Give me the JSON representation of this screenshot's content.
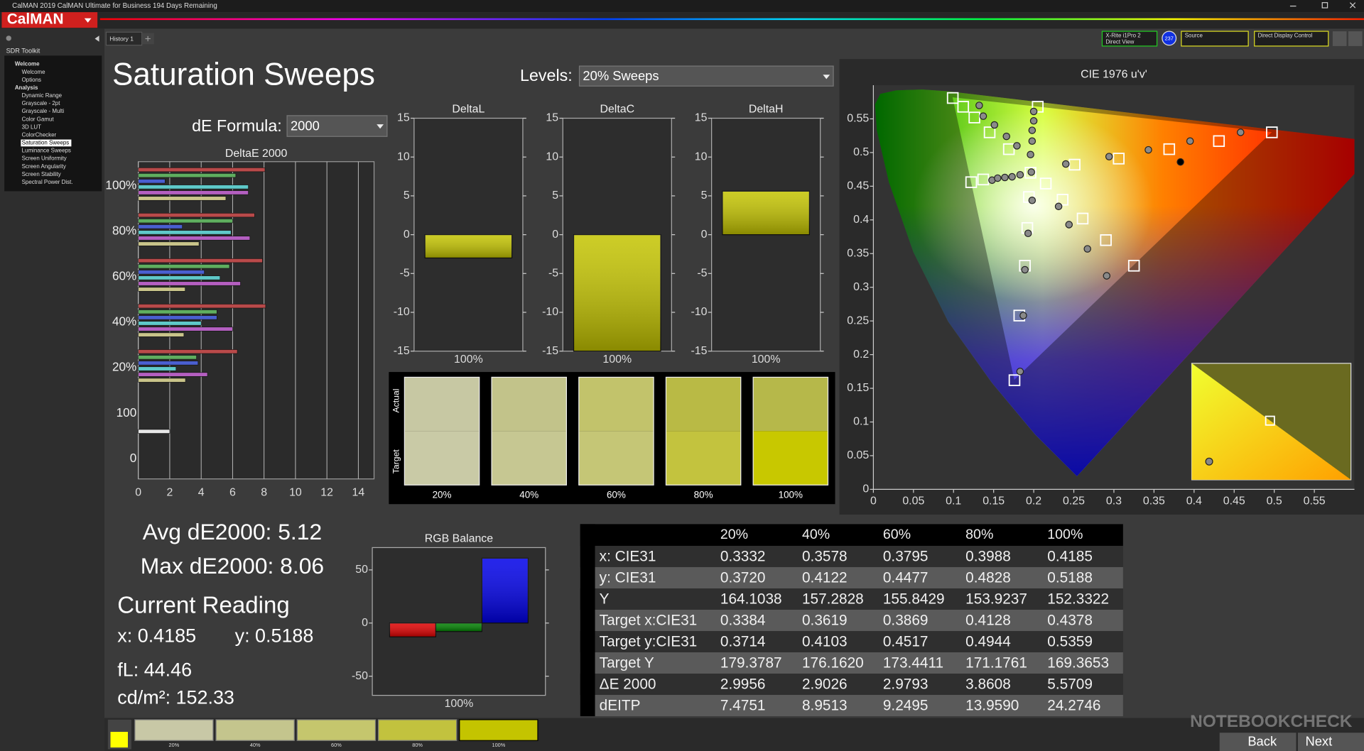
{
  "window": {
    "title": "CalMAN 2019 CalMAN Ultimate for Business 194 Days Remaining",
    "logo": "CalMAN"
  },
  "tabs": [
    "History 1"
  ],
  "toolbar": {
    "meter": [
      "X-Rite i1Pro 2",
      "Direct View"
    ],
    "badge": "237",
    "source": "Source",
    "display": "Direct Display Control"
  },
  "sidebar": {
    "title": "SDR Toolkit",
    "items": [
      {
        "label": "Welcome",
        "heading": true
      },
      {
        "label": "Welcome"
      },
      {
        "label": "Options"
      },
      {
        "label": "Analysis",
        "heading": true
      },
      {
        "label": "Dynamic Range"
      },
      {
        "label": "Grayscale - 2pt"
      },
      {
        "label": "Grayscale - Multi"
      },
      {
        "label": "Color Gamut"
      },
      {
        "label": "3D LUT"
      },
      {
        "label": "ColorChecker"
      },
      {
        "label": "Saturation Sweeps",
        "selected": true
      },
      {
        "label": "Luminance Sweeps"
      },
      {
        "label": "Screen Uniformity"
      },
      {
        "label": "Screen Angularity"
      },
      {
        "label": "Screen Stability"
      },
      {
        "label": "Spectral Power Dist."
      }
    ]
  },
  "page": {
    "title": "Saturation Sweeps",
    "levels_label": "Levels:",
    "levels_value": "20% Sweeps",
    "formula_label": "dE Formula:",
    "formula_value": "2000"
  },
  "chart_data": [
    {
      "type": "hbar",
      "title": "DeltaE 2000",
      "categories": [
        "100%",
        "80%",
        "60%",
        "40%",
        "20%",
        "100",
        "0"
      ],
      "series": [
        {
          "color": "#b94a4a",
          "values": [
            8.06,
            7.4,
            7.9,
            8.1,
            6.3,
            null,
            null
          ]
        },
        {
          "color": "#5fae5f",
          "values": [
            6.2,
            6.0,
            5.8,
            5.0,
            3.7,
            null,
            null
          ]
        },
        {
          "color": "#4a5fd0",
          "values": [
            1.7,
            2.8,
            4.2,
            5.0,
            3.8,
            null,
            null
          ]
        },
        {
          "color": "#5fc9c9",
          "values": [
            7.0,
            5.9,
            5.2,
            4.0,
            2.4,
            null,
            null
          ]
        },
        {
          "color": "#b45fc0",
          "values": [
            7.0,
            7.1,
            6.5,
            6.0,
            4.4,
            null,
            null
          ]
        },
        {
          "color": "#c9c48a",
          "values": [
            5.57,
            3.86,
            2.98,
            2.9,
            3.0,
            null,
            null
          ]
        },
        {
          "color": "#e8e8e8",
          "values": [
            null,
            null,
            null,
            null,
            null,
            2.0,
            null
          ]
        }
      ],
      "xlim": [
        0,
        15
      ],
      "xticks": [
        0,
        2,
        4,
        6,
        8,
        10,
        12,
        14
      ],
      "grid": true
    },
    {
      "type": "bar",
      "title": "DeltaL",
      "categories": [
        "100%"
      ],
      "values": [
        -3.0
      ],
      "color": "#c4c400",
      "ylim": [
        -15,
        15
      ],
      "yticks": [
        -15,
        -10,
        -5,
        0,
        5,
        10,
        15
      ]
    },
    {
      "type": "bar",
      "title": "DeltaC",
      "categories": [
        "100%"
      ],
      "values": [
        -15
      ],
      "color": "#c4c400",
      "ylim": [
        -15,
        15
      ],
      "yticks": [
        -15,
        -10,
        -5,
        0,
        5,
        10,
        15
      ]
    },
    {
      "type": "bar",
      "title": "DeltaH",
      "categories": [
        "100%"
      ],
      "values": [
        5.6
      ],
      "color": "#c4c400",
      "ylim": [
        -15,
        15
      ],
      "yticks": [
        -15,
        -10,
        -5,
        0,
        5,
        10,
        15
      ]
    },
    {
      "type": "bar",
      "title": "RGB Balance",
      "categories": [
        "100%"
      ],
      "series": [
        {
          "color": "#e00000",
          "values": [
            -13
          ]
        },
        {
          "color": "#008000",
          "values": [
            -8
          ]
        },
        {
          "color": "#0000e8",
          "values": [
            61
          ]
        }
      ],
      "ylim": [
        -68,
        71
      ],
      "yticks": [
        -50,
        0,
        50
      ]
    },
    {
      "type": "scatter",
      "title": "CIE 1976 u'v'",
      "xlim": [
        0,
        0.6
      ],
      "ylim": [
        0,
        0.6
      ],
      "xticks": [
        0,
        0.05,
        0.1,
        0.15,
        0.2,
        0.25,
        0.3,
        0.35,
        0.4,
        0.45,
        0.5,
        0.55
      ],
      "yticks": [
        0,
        0.05,
        0.1,
        0.15,
        0.2,
        0.25,
        0.3,
        0.35,
        0.4,
        0.45,
        0.5,
        0.55
      ],
      "series": [
        {
          "marker": "square",
          "color": "#ffffff",
          "x": [
            0.099,
            0.112,
            0.126,
            0.145,
            0.169,
            0.205,
            0.122,
            0.137,
            0.196,
            0.215,
            0.251,
            0.306,
            0.369,
            0.431,
            0.497,
            0.194,
            0.236,
            0.261,
            0.29,
            0.325,
            0.192,
            0.189,
            0.182,
            0.176
          ],
          "y": [
            0.581,
            0.568,
            0.552,
            0.53,
            0.505,
            0.568,
            0.456,
            0.46,
            0.47,
            0.454,
            0.482,
            0.491,
            0.505,
            0.517,
            0.53,
            0.434,
            0.43,
            0.402,
            0.37,
            0.332,
            0.388,
            0.332,
            0.258,
            0.162
          ]
        },
        {
          "marker": "circle",
          "color": "#8a8a8a",
          "x": [
            0.132,
            0.137,
            0.151,
            0.166,
            0.179,
            0.2,
            0.2,
            0.198,
            0.198,
            0.196,
            0.197,
            0.148,
            0.155,
            0.164,
            0.173,
            0.183,
            0.24,
            0.294,
            0.343,
            0.395,
            0.458,
            0.198,
            0.231,
            0.244,
            0.267,
            0.291,
            0.193,
            0.189,
            0.187,
            0.183
          ],
          "y": [
            0.57,
            0.554,
            0.541,
            0.524,
            0.51,
            0.561,
            0.547,
            0.533,
            0.517,
            0.497,
            0.471,
            0.459,
            0.462,
            0.463,
            0.464,
            0.467,
            0.483,
            0.494,
            0.504,
            0.517,
            0.53,
            0.429,
            0.42,
            0.393,
            0.357,
            0.317,
            0.38,
            0.326,
            0.258,
            0.175
          ]
        },
        {
          "marker": "circle",
          "color": "#000000",
          "x": [
            0.383
          ],
          "y": [
            0.486
          ]
        }
      ]
    }
  ],
  "swatches": {
    "actual_label": "Actual",
    "target_label": "Target",
    "items": [
      {
        "label": "20%",
        "actual": "#c7c8a3",
        "target": "#c9caa6"
      },
      {
        "label": "40%",
        "actual": "#c2c38a",
        "target": "#c6c792"
      },
      {
        "label": "60%",
        "actual": "#c2c36b",
        "target": "#c5c676"
      },
      {
        "label": "80%",
        "actual": "#b9ba45",
        "target": "#c3c33e"
      },
      {
        "label": "100%",
        "actual": "#b6b84a",
        "target": "#c8c800"
      }
    ]
  },
  "stats": {
    "avg": "Avg dE2000: 5.12",
    "max": "Max dE2000: 8.06",
    "heading": "Current Reading",
    "x": "x: 0.4185",
    "y": "y: 0.5188",
    "fl": "fL: 44.46",
    "cdm2": "cd/m²: 152.33"
  },
  "table": {
    "header": [
      "20%",
      "40%",
      "60%",
      "80%",
      "100%"
    ],
    "rows": [
      [
        "x: CIE31",
        "0.3332",
        "0.3578",
        "0.3795",
        "0.3988",
        "0.4185"
      ],
      [
        "y: CIE31",
        "0.3720",
        "0.4122",
        "0.4477",
        "0.4828",
        "0.5188"
      ],
      [
        "Y",
        "164.1038",
        "157.2828",
        "155.8429",
        "153.9237",
        "152.3322"
      ],
      [
        "Target x:CIE31",
        "0.3384",
        "0.3619",
        "0.3869",
        "0.4128",
        "0.4378"
      ],
      [
        "Target y:CIE31",
        "0.3714",
        "0.4103",
        "0.4517",
        "0.4944",
        "0.5359"
      ],
      [
        "Target Y",
        "179.3787",
        "176.1620",
        "173.4411",
        "171.1761",
        "169.3653"
      ],
      [
        "ΔE 2000",
        "2.9956",
        "2.9026",
        "2.9793",
        "3.8608",
        "5.5709"
      ],
      [
        "dEITP",
        "7.4751",
        "8.9513",
        "9.2495",
        "13.9590",
        "24.2746"
      ]
    ]
  },
  "footer": {
    "thumbnails": [
      {
        "label": "20%",
        "color": "#c8c8a6"
      },
      {
        "label": "40%",
        "color": "#c4c58d"
      },
      {
        "label": "60%",
        "color": "#c5c66d"
      },
      {
        "label": "80%",
        "color": "#c2c23e"
      },
      {
        "label": "100%",
        "color": "#c4c400"
      }
    ],
    "back": "Back",
    "next": "Next"
  },
  "watermark": "NOTEBOOKCHECK"
}
